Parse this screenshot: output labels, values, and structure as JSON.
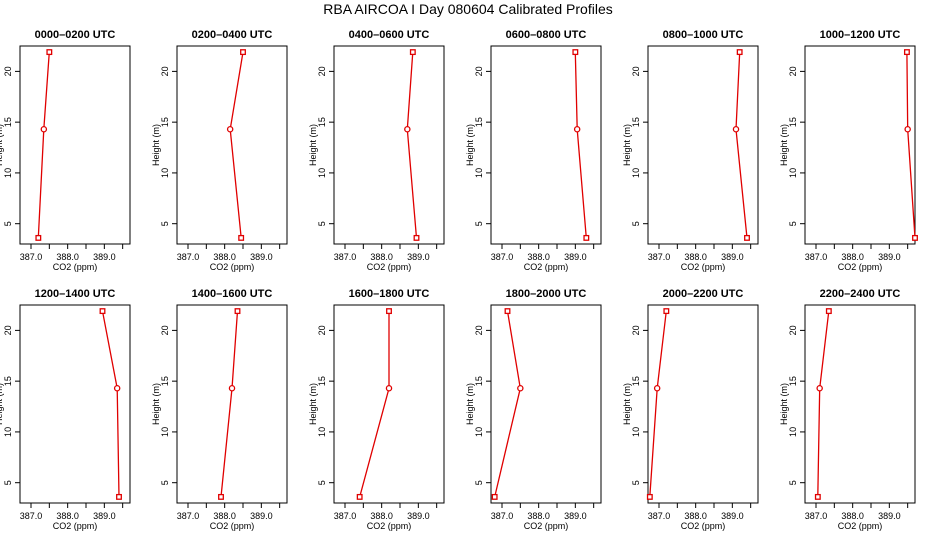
{
  "title": "RBA AIRCOA I  Day 080604  Calibrated Profiles",
  "colors": {
    "series": "#e00000",
    "axis": "#000000"
  },
  "chart_data": [
    {
      "type": "line",
      "title": "0000–0200 UTC",
      "xlabel": "CO2 (ppm)",
      "ylabel": "Height (m)",
      "x": [
        387.2,
        387.35,
        387.5
      ],
      "y": [
        3.6,
        14.3,
        21.9
      ],
      "xlim": [
        386.7,
        389.7
      ],
      "ylim": [
        3.0,
        22.5
      ],
      "xticks": [
        "387.0",
        "388.0",
        "389.0"
      ],
      "yticks": [
        "5",
        "10",
        "15",
        "20"
      ]
    },
    {
      "type": "line",
      "title": "0200–0400 UTC",
      "xlabel": "CO2 (ppm)",
      "ylabel": "Height (m)",
      "x": [
        388.45,
        388.15,
        388.5
      ],
      "y": [
        3.6,
        14.3,
        21.9
      ],
      "xlim": [
        386.7,
        389.7
      ],
      "ylim": [
        3.0,
        22.5
      ],
      "xticks": [
        "387.0",
        "388.0",
        "389.0"
      ],
      "yticks": [
        "5",
        "10",
        "15",
        "20"
      ]
    },
    {
      "type": "line",
      "title": "0400–0600 UTC",
      "xlabel": "CO2 (ppm)",
      "ylabel": "Height (m)",
      "x": [
        388.95,
        388.7,
        388.85
      ],
      "y": [
        3.6,
        14.3,
        21.9
      ],
      "xlim": [
        386.7,
        389.7
      ],
      "ylim": [
        3.0,
        22.5
      ],
      "xticks": [
        "387.0",
        "388.0",
        "389.0"
      ],
      "yticks": [
        "5",
        "10",
        "15",
        "20"
      ]
    },
    {
      "type": "line",
      "title": "0600–0800 UTC",
      "xlabel": "CO2 (ppm)",
      "ylabel": "Height (m)",
      "x": [
        389.3,
        389.05,
        389.0
      ],
      "y": [
        3.6,
        14.3,
        21.9
      ],
      "xlim": [
        386.7,
        389.7
      ],
      "ylim": [
        3.0,
        22.5
      ],
      "xticks": [
        "387.0",
        "388.0",
        "389.0"
      ],
      "yticks": [
        "5",
        "10",
        "15",
        "20"
      ]
    },
    {
      "type": "line",
      "title": "0800–1000 UTC",
      "xlabel": "CO2 (ppm)",
      "ylabel": "Height (m)",
      "x": [
        389.4,
        389.1,
        389.2
      ],
      "y": [
        3.6,
        14.3,
        21.9
      ],
      "xlim": [
        386.7,
        389.7
      ],
      "ylim": [
        3.0,
        22.5
      ],
      "xticks": [
        "387.0",
        "388.0",
        "389.0"
      ],
      "yticks": [
        "5",
        "10",
        "15",
        "20"
      ]
    },
    {
      "type": "line",
      "title": "1000–1200 UTC",
      "xlabel": "CO2 (ppm)",
      "ylabel": "Height (m)",
      "x": [
        389.7,
        389.5,
        389.48
      ],
      "y": [
        3.6,
        14.3,
        21.9
      ],
      "xlim": [
        386.7,
        389.7
      ],
      "ylim": [
        3.0,
        22.5
      ],
      "xticks": [
        "387.0",
        "388.0",
        "389.0"
      ],
      "yticks": [
        "5",
        "10",
        "15",
        "20"
      ]
    },
    {
      "type": "line",
      "title": "1200–1400 UTC",
      "xlabel": "CO2 (ppm)",
      "ylabel": "Height (m)",
      "x": [
        389.4,
        389.35,
        388.95
      ],
      "y": [
        3.6,
        14.3,
        21.9
      ],
      "xlim": [
        386.7,
        389.7
      ],
      "ylim": [
        3.0,
        22.5
      ],
      "xticks": [
        "387.0",
        "388.0",
        "389.0"
      ],
      "yticks": [
        "5",
        "10",
        "15",
        "20"
      ]
    },
    {
      "type": "line",
      "title": "1400–1600 UTC",
      "xlabel": "CO2 (ppm)",
      "ylabel": "Height (m)",
      "x": [
        387.9,
        388.2,
        388.35
      ],
      "y": [
        3.6,
        14.3,
        21.9
      ],
      "xlim": [
        386.7,
        389.7
      ],
      "ylim": [
        3.0,
        22.5
      ],
      "xticks": [
        "387.0",
        "388.0",
        "389.0"
      ],
      "yticks": [
        "5",
        "10",
        "15",
        "20"
      ]
    },
    {
      "type": "line",
      "title": "1600–1800 UTC",
      "xlabel": "CO2 (ppm)",
      "ylabel": "Height (m)",
      "x": [
        387.4,
        388.2,
        388.2
      ],
      "y": [
        3.6,
        14.3,
        21.9
      ],
      "xlim": [
        386.7,
        389.7
      ],
      "ylim": [
        3.0,
        22.5
      ],
      "xticks": [
        "387.0",
        "388.0",
        "389.0"
      ],
      "yticks": [
        "5",
        "10",
        "15",
        "20"
      ]
    },
    {
      "type": "line",
      "title": "1800–2000 UTC",
      "xlabel": "CO2 (ppm)",
      "ylabel": "Height (m)",
      "x": [
        386.8,
        387.5,
        387.15
      ],
      "y": [
        3.6,
        14.3,
        21.9
      ],
      "xlim": [
        386.7,
        389.7
      ],
      "ylim": [
        3.0,
        22.5
      ],
      "xticks": [
        "387.0",
        "388.0",
        "389.0"
      ],
      "yticks": [
        "5",
        "10",
        "15",
        "20"
      ]
    },
    {
      "type": "line",
      "title": "2000–2200 UTC",
      "xlabel": "CO2 (ppm)",
      "ylabel": "Height (m)",
      "x": [
        386.75,
        386.95,
        387.2
      ],
      "y": [
        3.6,
        14.3,
        21.9
      ],
      "xlim": [
        386.7,
        389.7
      ],
      "ylim": [
        3.0,
        22.5
      ],
      "xticks": [
        "387.0",
        "388.0",
        "389.0"
      ],
      "yticks": [
        "5",
        "10",
        "15",
        "20"
      ]
    },
    {
      "type": "line",
      "title": "2200–2400 UTC",
      "xlabel": "CO2 (ppm)",
      "ylabel": "Height (m)",
      "x": [
        387.05,
        387.1,
        387.35
      ],
      "y": [
        3.6,
        14.3,
        21.9
      ],
      "xlim": [
        386.7,
        389.7
      ],
      "ylim": [
        3.0,
        22.5
      ],
      "xticks": [
        "387.0",
        "388.0",
        "389.0"
      ],
      "yticks": [
        "5",
        "10",
        "15",
        "20"
      ]
    }
  ]
}
